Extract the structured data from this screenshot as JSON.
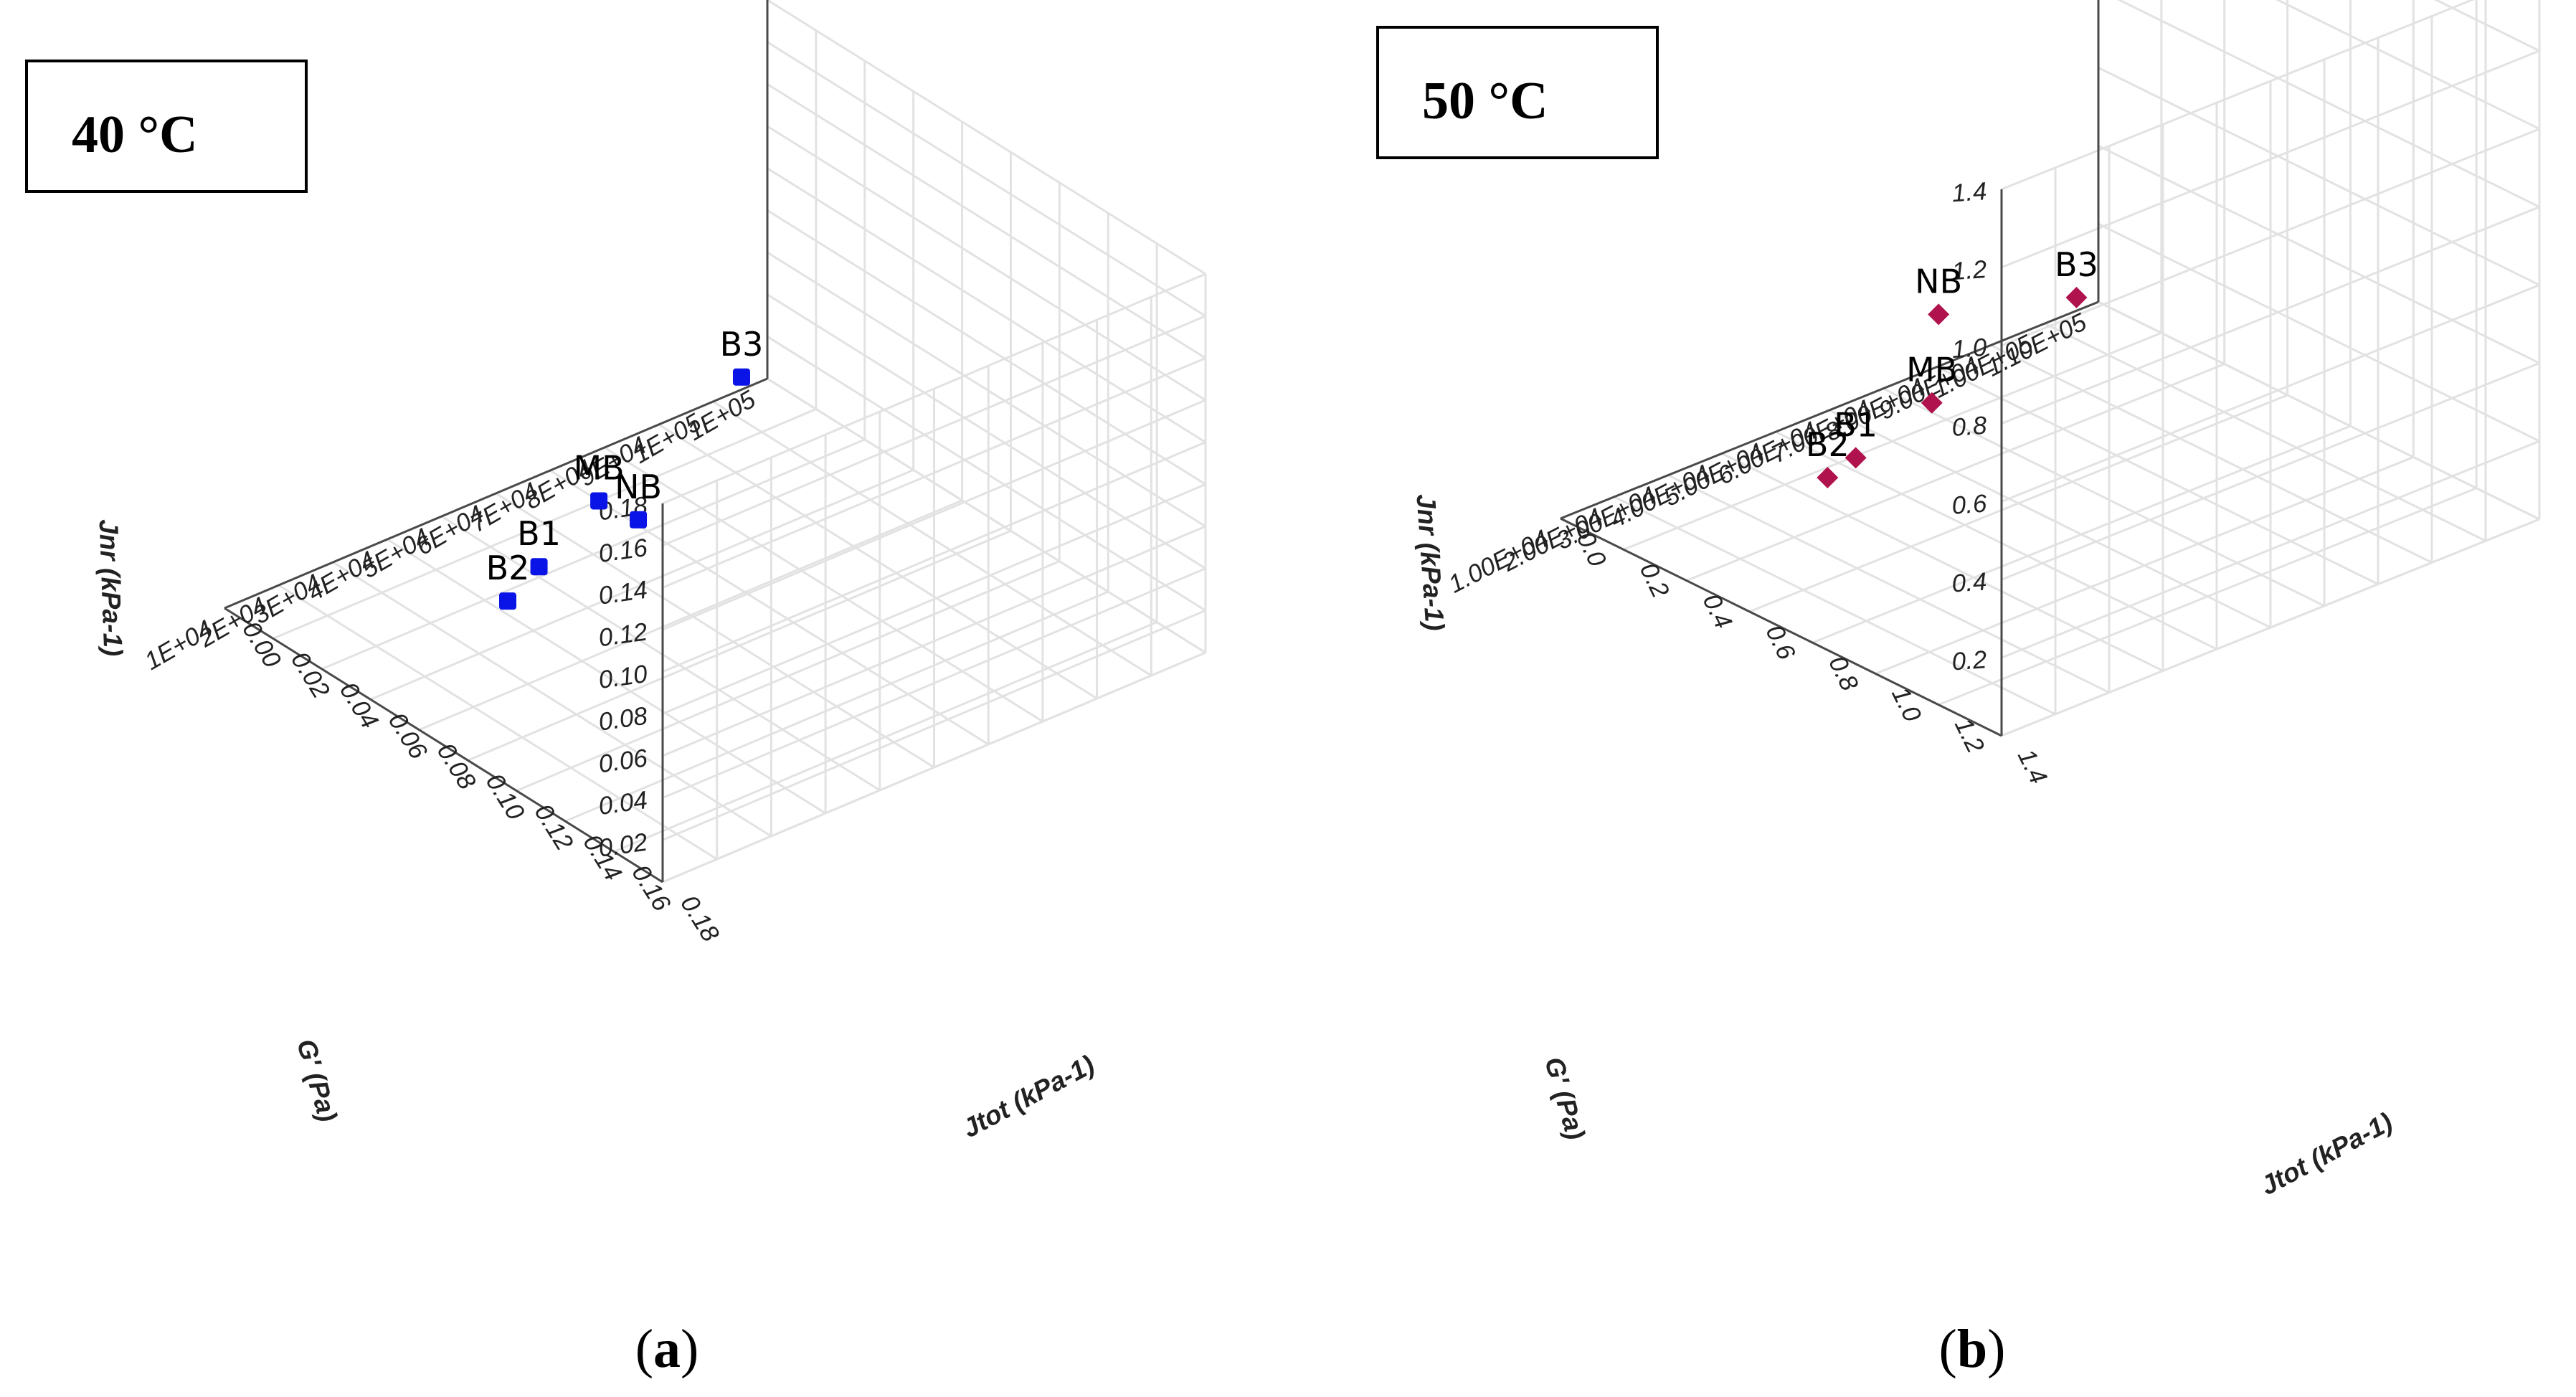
{
  "chart_data": [
    {
      "type": "scatter3d",
      "title": "40 °C",
      "caption_letter": "a",
      "xlabel": "G' (Pa)",
      "ylabel": "Jtot (kPa-1)",
      "zlabel": "Jnr (kPa-1)",
      "xticks": [
        "1E+04",
        "2E+04",
        "3E+04",
        "4E+04",
        "5E+04",
        "6E+04",
        "7E+04",
        "8E+04",
        "9E+04",
        "1E+05",
        "1E+05"
      ],
      "yticks": [
        "0.00",
        "0.02",
        "0.04",
        "0.06",
        "0.08",
        "0.10",
        "0.12",
        "0.14",
        "0.16",
        "0.18"
      ],
      "zticks": [
        "0.02",
        "0.04",
        "0.06",
        "0.08",
        "0.10",
        "0.12",
        "0.14",
        "0.16",
        "0.18"
      ],
      "xlim": [
        10000,
        110000
      ],
      "ylim": [
        0,
        0.18
      ],
      "zlim": [
        0,
        0.18
      ],
      "marker": "square",
      "color": "#0a14e6",
      "points": [
        {
          "label": "NB",
          "x": 10000,
          "y": 0.17,
          "z": 0.165
        },
        {
          "label": "B3",
          "x": 103000,
          "y": 0.005,
          "z": 0.012
        },
        {
          "label": "B1",
          "x": 50000,
          "y": 0.04,
          "z": 0.005
        },
        {
          "label": "B2",
          "x": 42000,
          "y": 0.045,
          "z": 0.001
        },
        {
          "label": "MB",
          "x": 70000,
          "y": 0.02,
          "z": 0.0
        }
      ]
    },
    {
      "type": "scatter3d",
      "title": "50 °C",
      "caption_letter": "b",
      "xlabel": "G' (Pa)",
      "ylabel": "Jtot (kPa-1)",
      "zlabel": "Jnr (kPa-1)",
      "xticks": [
        "1.00E+04",
        "2.00E+04",
        "3.00E+04",
        "4.00E+04",
        "5.00E+04",
        "6.00E+04",
        "7.00E+04",
        "8.00E+04",
        "9.00E+04",
        "1.00E+05",
        "1.10E+05"
      ],
      "yticks": [
        "0.0",
        "0.2",
        "0.4",
        "0.6",
        "0.8",
        "1.0",
        "1.2",
        "1.4"
      ],
      "zticks": [
        "0.2",
        "0.4",
        "0.6",
        "0.8",
        "1.0",
        "1.2",
        "1.4"
      ],
      "xlim": [
        10000,
        110000
      ],
      "ylim": [
        0,
        1.4
      ],
      "zlim": [
        0,
        1.4
      ],
      "marker": "diamond",
      "color": "#b0124e",
      "points": [
        {
          "label": "NB",
          "x": 10000,
          "y": 1.2,
          "z": 1.0
        },
        {
          "label": "B3",
          "x": 103000,
          "y": 0.05,
          "z": 0.07
        },
        {
          "label": "B1",
          "x": 52000,
          "y": 0.22,
          "z": 0.01
        },
        {
          "label": "B2",
          "x": 45000,
          "y": 0.25,
          "z": 0.01
        },
        {
          "label": "MB",
          "x": 72000,
          "y": 0.12,
          "z": 0.0
        }
      ]
    }
  ]
}
